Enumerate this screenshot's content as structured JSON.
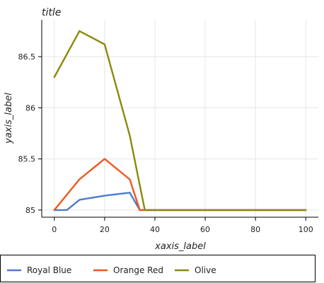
{
  "chart_data": {
    "type": "line",
    "title": "title",
    "xlabel": "xaxis_label",
    "ylabel": "yaxis_label",
    "xlim": [
      -5,
      105
    ],
    "ylim": [
      84.93,
      86.86
    ],
    "xticks": [
      0,
      20,
      40,
      60,
      80,
      100
    ],
    "yticks": [
      85,
      85.5,
      86,
      86.5
    ],
    "ytick_labels": [
      "85",
      "85.5",
      "86",
      "86.5"
    ],
    "grid": true,
    "legend_position": "bottom",
    "series": [
      {
        "name": "Royal Blue",
        "color": "#4a7bd0",
        "x": [
          0,
          5,
          10,
          20,
          30,
          34,
          40,
          60,
          80,
          100
        ],
        "y": [
          85,
          85,
          85.1,
          85.14,
          85.17,
          85,
          85,
          85,
          85,
          85
        ]
      },
      {
        "name": "Orange Red",
        "color": "#f0561d",
        "x": [
          0,
          10,
          20,
          30,
          34,
          40,
          60,
          80,
          100
        ],
        "y": [
          85,
          85.3,
          85.5,
          85.3,
          85,
          85,
          85,
          85,
          85
        ]
      },
      {
        "name": "Olive",
        "color": "#8a8a0a",
        "x": [
          0,
          10,
          20,
          30,
          36,
          40,
          60,
          80,
          100
        ],
        "y": [
          86.3,
          86.75,
          86.62,
          85.73,
          85,
          85,
          85,
          85,
          85
        ]
      }
    ]
  }
}
